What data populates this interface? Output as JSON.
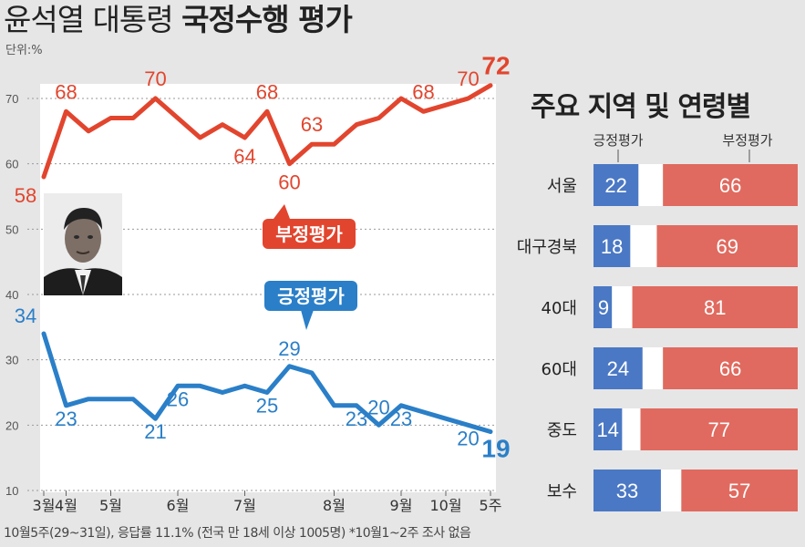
{
  "header": {
    "title_normal": "윤석열 대통령",
    "title_bold": "국정수행 평가",
    "unit": "단위:%"
  },
  "footnote": "10월5주(29~31일), 응답률 11.1% (전국 만 18세 이상 1005명) *10월1~2주 조사 없음",
  "chart_data": [
    {
      "type": "line",
      "title": "윤석열 대통령 국정수행 평가",
      "unit": "단위:%",
      "ylim": [
        10,
        75
      ],
      "yticks": [
        10,
        20,
        30,
        40,
        50,
        60,
        70
      ],
      "grid": true,
      "xlabels": [
        "3월",
        "4월",
        "5월",
        "6월",
        "7월",
        "8월",
        "9월",
        "10월",
        "5주"
      ],
      "xlabel_positions": [
        0,
        1,
        3,
        6,
        9,
        13,
        16,
        18,
        20
      ],
      "x": [
        0,
        1,
        2,
        3,
        4,
        5,
        6,
        7,
        8,
        9,
        10,
        11,
        12,
        13,
        14,
        15,
        16,
        17,
        18,
        19,
        20
      ],
      "series": [
        {
          "name": "부정평가",
          "color": "#e2452e",
          "values": [
            58,
            68,
            65,
            67,
            67,
            70,
            67,
            64,
            66,
            64,
            68,
            60,
            63,
            63,
            66,
            67,
            70,
            68,
            69,
            70,
            72
          ],
          "labeled_points": [
            0,
            1,
            5,
            9,
            10,
            11,
            12,
            17,
            19,
            20
          ]
        },
        {
          "name": "긍정평가",
          "color": "#2a7fc8",
          "values": [
            34,
            23,
            24,
            24,
            24,
            21,
            26,
            26,
            25,
            26,
            25,
            29,
            28,
            23,
            23,
            20,
            23,
            22,
            21,
            20,
            19
          ],
          "labeled_points": [
            0,
            1,
            5,
            6,
            10,
            11,
            14,
            15,
            16,
            19,
            20
          ]
        }
      ]
    },
    {
      "type": "bar",
      "title": "주요 지역 및 연령별",
      "legend": [
        "긍정평가",
        "부정평가"
      ],
      "categories": [
        "서울",
        "대구경북",
        "40대",
        "60대",
        "중도",
        "보수"
      ],
      "series": [
        {
          "name": "긍정평가",
          "color": "#4a78c4",
          "values": [
            22,
            18,
            9,
            24,
            14,
            33
          ]
        },
        {
          "name": "부정평가",
          "color": "#e06a5f",
          "values": [
            66,
            69,
            81,
            66,
            77,
            57
          ]
        }
      ]
    }
  ]
}
